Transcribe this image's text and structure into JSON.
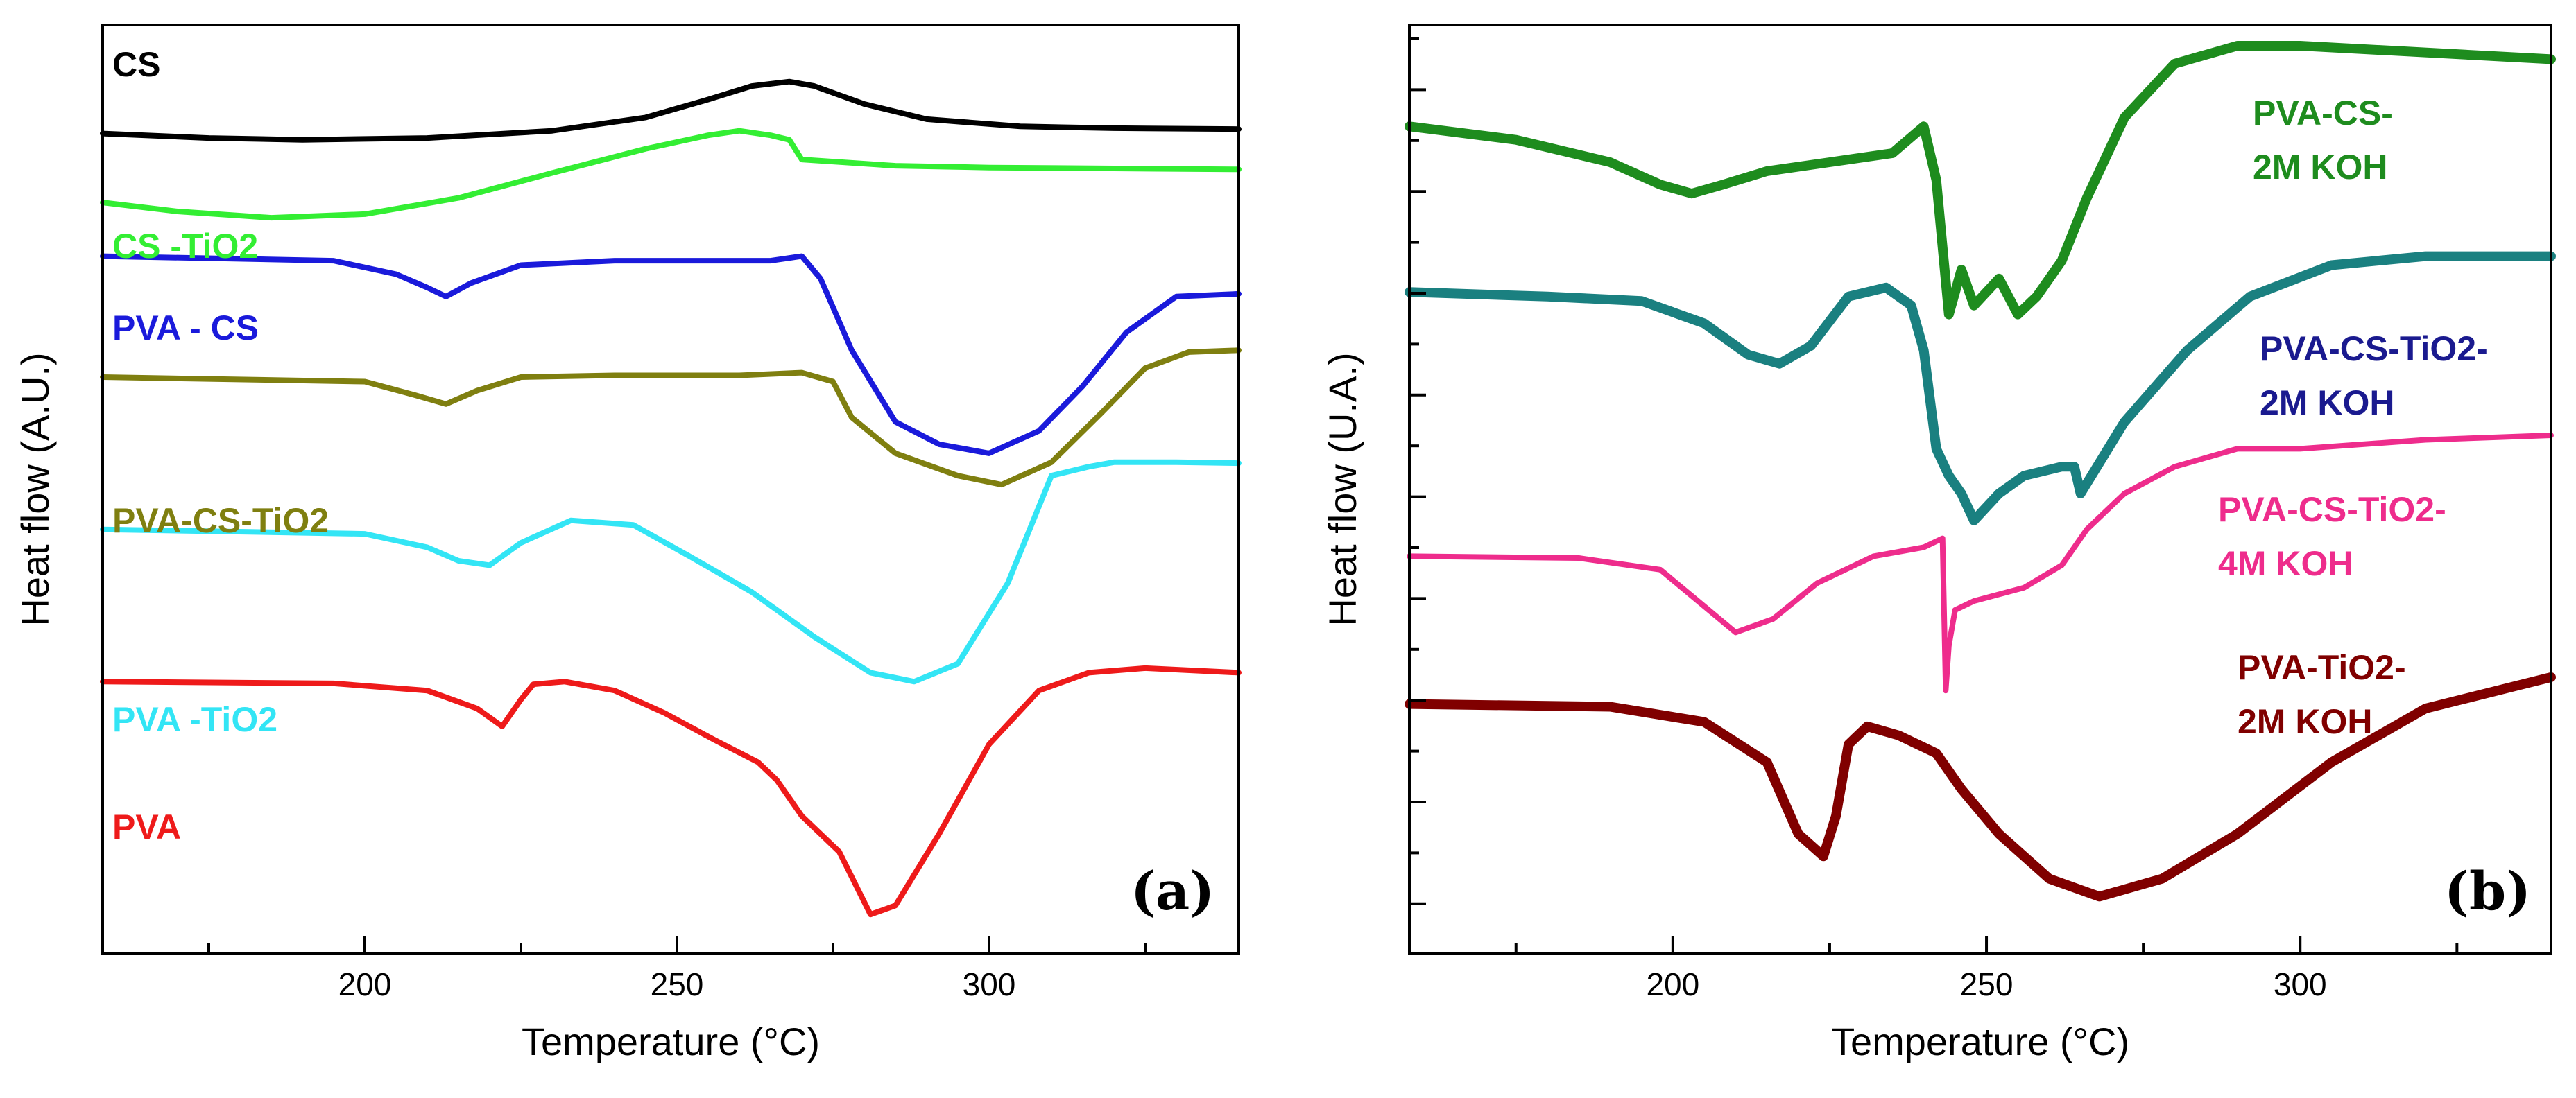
{
  "chart_data": [
    {
      "type": "line",
      "panel_label": "(a)",
      "xlabel": "Temperature (°C)",
      "ylabel": "Heat flow (A.U.)",
      "xlim": [
        158,
        340
      ],
      "ylim": [
        0,
        1
      ],
      "xticks": [
        200,
        250,
        300
      ],
      "xtick_labels": [
        "200",
        "250",
        "300"
      ],
      "yticks_shown": false,
      "grid": false,
      "series": [
        {
          "name": "CS",
          "color": "#000000",
          "label_color": "#000000",
          "x": [
            158,
            175,
            190,
            210,
            230,
            245,
            255,
            262,
            268,
            272,
            280,
            290,
            305,
            320,
            340
          ],
          "y": [
            0.902,
            0.897,
            0.895,
            0.897,
            0.905,
            0.92,
            0.94,
            0.955,
            0.96,
            0.955,
            0.935,
            0.918,
            0.91,
            0.908,
            0.907
          ]
        },
        {
          "name": "CS -TiO2",
          "color": "#33ee33",
          "label_color": "#33ee33",
          "x": [
            158,
            170,
            185,
            200,
            215,
            230,
            245,
            255,
            260,
            265,
            268,
            270,
            285,
            300,
            320,
            340
          ],
          "y": [
            0.825,
            0.815,
            0.808,
            0.812,
            0.83,
            0.858,
            0.885,
            0.9,
            0.905,
            0.9,
            0.895,
            0.873,
            0.866,
            0.864,
            0.863,
            0.862
          ]
        },
        {
          "name": "PVA - CS",
          "color": "#1a1adb",
          "label_color": "#1a1adb",
          "x": [
            158,
            195,
            205,
            210,
            213,
            217,
            225,
            240,
            255,
            265,
            270,
            273,
            278,
            285,
            292,
            300,
            308,
            315,
            322,
            330,
            340
          ],
          "y": [
            0.765,
            0.76,
            0.745,
            0.73,
            0.72,
            0.735,
            0.755,
            0.76,
            0.76,
            0.76,
            0.765,
            0.74,
            0.66,
            0.58,
            0.555,
            0.545,
            0.57,
            0.62,
            0.68,
            0.72,
            0.723
          ]
        },
        {
          "name": "PVA-CS-TiO2",
          "color": "#7f7f10",
          "label_color": "#7f7f10",
          "x": [
            158,
            200,
            208,
            213,
            218,
            225,
            240,
            260,
            270,
            275,
            278,
            285,
            295,
            302,
            310,
            318,
            325,
            332,
            340
          ],
          "y": [
            0.63,
            0.625,
            0.61,
            0.6,
            0.615,
            0.63,
            0.632,
            0.632,
            0.635,
            0.625,
            0.585,
            0.545,
            0.52,
            0.51,
            0.535,
            0.59,
            0.64,
            0.658,
            0.66
          ]
        },
        {
          "name": "PVA -TiO2",
          "color": "#33e5f5",
          "label_color": "#33e5f5",
          "x": [
            158,
            200,
            210,
            215,
            220,
            225,
            233,
            243,
            252,
            262,
            272,
            281,
            288,
            295,
            303,
            310,
            316,
            320,
            330,
            340
          ],
          "y": [
            0.46,
            0.455,
            0.44,
            0.425,
            0.42,
            0.445,
            0.47,
            0.465,
            0.43,
            0.39,
            0.34,
            0.3,
            0.29,
            0.31,
            0.4,
            0.52,
            0.53,
            0.535,
            0.535,
            0.534
          ]
        },
        {
          "name": "PVA",
          "color": "#ee1a1a",
          "label_color": "#ee1a1a",
          "x": [
            158,
            195,
            210,
            218,
            222,
            225,
            227,
            232,
            240,
            248,
            256,
            263,
            266,
            270,
            276,
            281,
            285,
            292,
            300,
            308,
            316,
            325,
            340
          ],
          "y": [
            0.29,
            0.288,
            0.28,
            0.26,
            0.24,
            0.27,
            0.287,
            0.29,
            0.28,
            0.255,
            0.225,
            0.2,
            0.18,
            0.14,
            0.1,
            0.03,
            0.04,
            0.12,
            0.22,
            0.28,
            0.3,
            0.305,
            0.3
          ]
        }
      ]
    },
    {
      "type": "line",
      "panel_label": "(b)",
      "xlabel": "Temperature (°C)",
      "ylabel": "Heat flow (U.A.)",
      "xlim": [
        158,
        340
      ],
      "ylim": [
        0,
        1
      ],
      "xticks": [
        200,
        250,
        300
      ],
      "xtick_labels": [
        "200",
        "250",
        "300"
      ],
      "yticks_shown": true,
      "grid": false,
      "series": [
        {
          "name": "PVA-CS-\n2M KOH",
          "color": "#1e8c1e",
          "label_color": "#1e8c1e",
          "x": [
            158,
            175,
            190,
            198,
            203,
            208,
            215,
            225,
            235,
            240,
            242,
            244,
            246,
            248,
            252,
            255,
            258,
            262,
            266,
            272,
            280,
            290,
            300,
            340
          ],
          "y": [
            0.91,
            0.895,
            0.87,
            0.845,
            0.835,
            0.845,
            0.86,
            0.87,
            0.88,
            0.91,
            0.85,
            0.7,
            0.75,
            0.71,
            0.74,
            0.7,
            0.72,
            0.76,
            0.83,
            0.92,
            0.98,
            1.0,
            1.0,
            0.985
          ]
        },
        {
          "name": "PVA-CS-TiO2-\n2M KOH",
          "color": "#1a8080",
          "label_color": "#1a1a8f",
          "x": [
            158,
            180,
            195,
            205,
            212,
            217,
            222,
            228,
            234,
            238,
            240,
            242,
            244,
            246,
            248,
            252,
            256,
            262,
            264,
            265,
            272,
            282,
            292,
            305,
            320,
            340
          ],
          "y": [
            0.725,
            0.72,
            0.715,
            0.69,
            0.655,
            0.645,
            0.665,
            0.72,
            0.73,
            0.71,
            0.66,
            0.55,
            0.52,
            0.5,
            0.47,
            0.5,
            0.52,
            0.53,
            0.53,
            0.5,
            0.58,
            0.66,
            0.72,
            0.755,
            0.765,
            0.765
          ]
        },
        {
          "name": "PVA-CS-TiO2-\n4M KOH",
          "color": "#ee2c8c",
          "label_color": "#ee2c8c",
          "x": [
            158,
            185,
            198,
            204,
            210,
            216,
            223,
            232,
            240,
            243,
            243.5,
            244,
            245,
            248,
            256,
            262,
            266,
            272,
            280,
            290,
            300,
            320,
            340
          ],
          "y": [
            0.43,
            0.428,
            0.415,
            0.38,
            0.345,
            0.36,
            0.4,
            0.43,
            0.44,
            0.45,
            0.28,
            0.33,
            0.37,
            0.38,
            0.395,
            0.42,
            0.46,
            0.5,
            0.53,
            0.55,
            0.55,
            0.56,
            0.565
          ]
        },
        {
          "name": "PVA-TiO2-\n2M KOH",
          "color": "#800000",
          "label_color": "#800000",
          "x": [
            158,
            190,
            205,
            215,
            220,
            224,
            226,
            228,
            231,
            236,
            242,
            246,
            252,
            260,
            268,
            278,
            290,
            305,
            320,
            340
          ],
          "y": [
            0.265,
            0.262,
            0.245,
            0.2,
            0.12,
            0.095,
            0.14,
            0.22,
            0.24,
            0.23,
            0.21,
            0.17,
            0.12,
            0.07,
            0.05,
            0.07,
            0.12,
            0.2,
            0.26,
            0.295
          ]
        }
      ]
    }
  ]
}
